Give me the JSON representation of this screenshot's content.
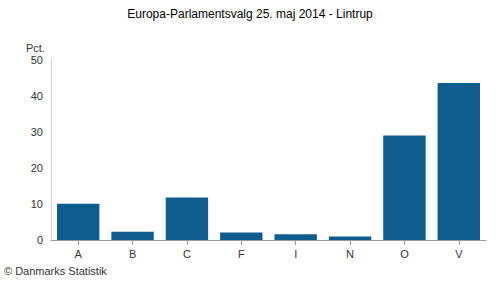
{
  "chart_data": {
    "type": "bar",
    "title": "Europa-Parlamentsvalg 25. maj 2014 - Lintrup",
    "ylabel": "Pct.",
    "annotation": "© Danmarks Statistik",
    "categories": [
      "A",
      "B",
      "C",
      "F",
      "I",
      "N",
      "O",
      "V"
    ],
    "values": [
      10.1,
      2.3,
      11.8,
      2.1,
      1.6,
      1.0,
      29.0,
      43.6
    ],
    "color": "#0e5d8e",
    "ylim": [
      0,
      50
    ],
    "yticks": [
      0,
      10,
      20,
      30,
      40,
      50
    ],
    "grid": false
  }
}
